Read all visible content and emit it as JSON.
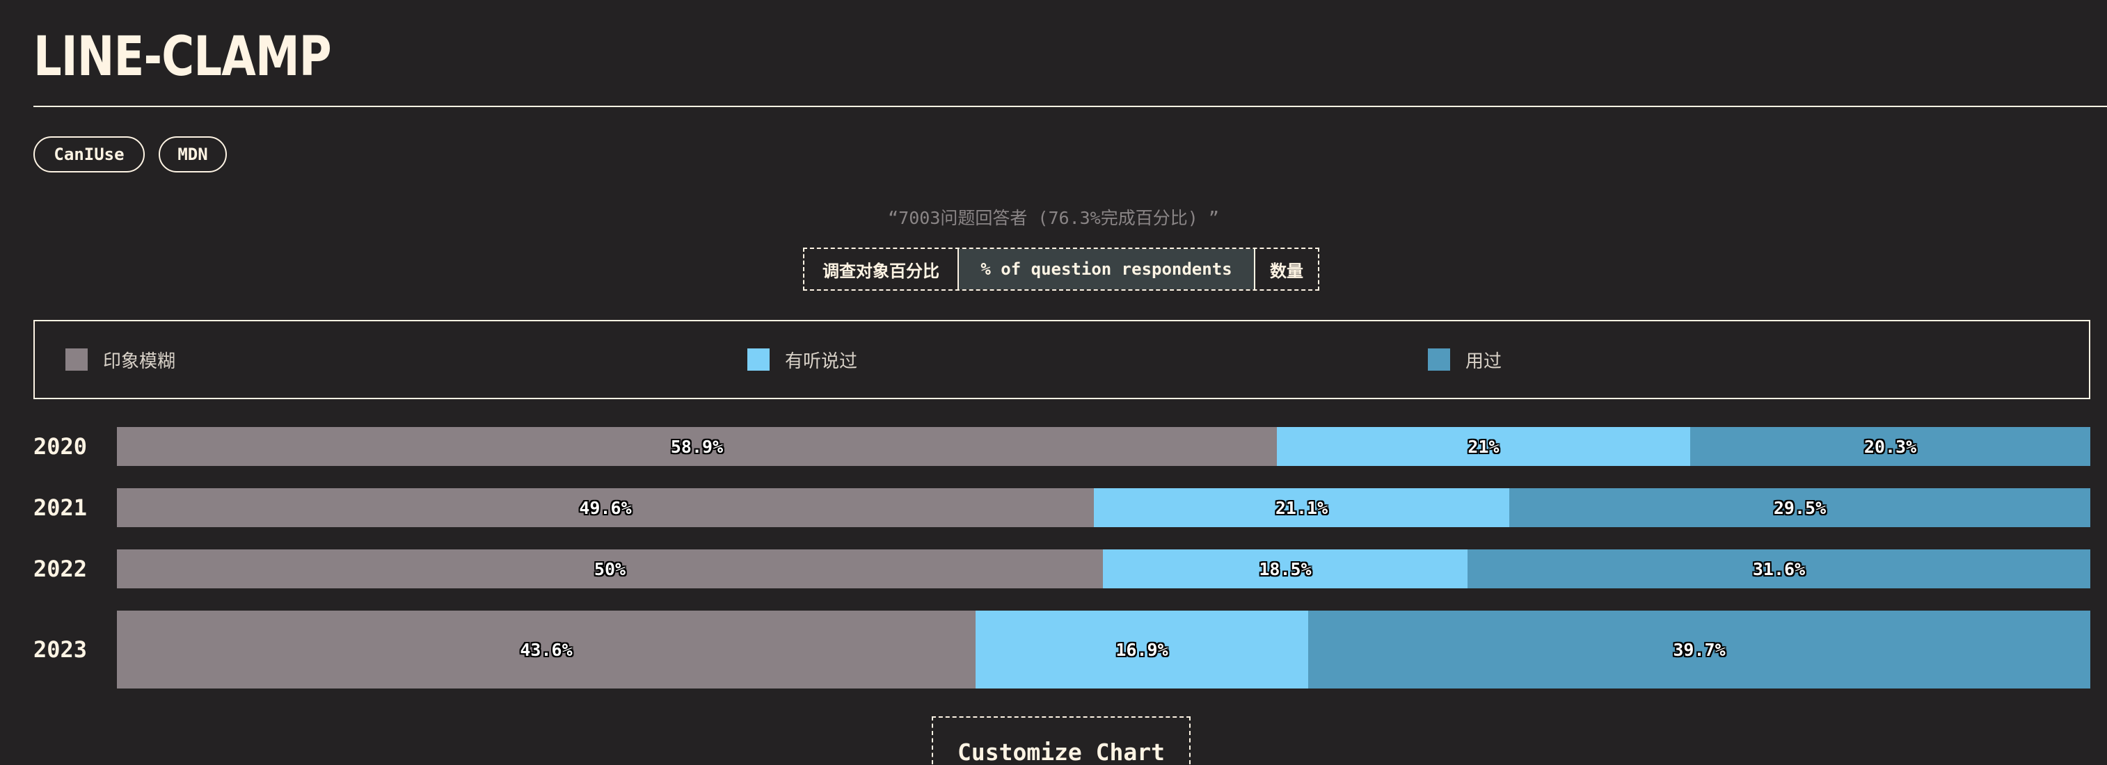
{
  "page": {
    "title": "LINE-CLAMP",
    "links": [
      {
        "label": "CanIUse"
      },
      {
        "label": "MDN"
      }
    ],
    "subtitle": "“7003问题回答者 (76.3%完成百分比) ”",
    "view_toggle": [
      {
        "label": "调查对象百分比",
        "selected": false
      },
      {
        "label": "% of question respondents",
        "selected": true
      },
      {
        "label": "数量",
        "selected": false
      }
    ],
    "customize_label": "Customize Chart"
  },
  "colors": {
    "background": "#242223",
    "text": "#fef4e4",
    "rule": "#fef4e4"
  },
  "chart_data": {
    "type": "bar",
    "orientation": "horizontal",
    "stacked": true,
    "normalized_to_percent": true,
    "categories": [
      "2020",
      "2021",
      "2022",
      "2023"
    ],
    "series": [
      {
        "name": "印象模糊",
        "color": "#8a8185",
        "values": [
          58.9,
          49.6,
          50,
          43.6
        ]
      },
      {
        "name": "有听说过",
        "color": "#7dd0f8",
        "values": [
          21,
          21.1,
          18.5,
          16.9
        ]
      },
      {
        "name": "用过",
        "color": "#529abd",
        "values": [
          20.3,
          29.5,
          31.6,
          39.7
        ]
      }
    ],
    "data_labels": [
      [
        "58.9%",
        "21%",
        "20.3%"
      ],
      [
        "49.6%",
        "21.1%",
        "29.5%"
      ],
      [
        "50%",
        "18.5%",
        "31.6%"
      ],
      [
        "43.6%",
        "16.9%",
        "39.7%"
      ]
    ],
    "xlim": [
      0,
      100
    ],
    "legend_position": "top",
    "grid": false
  }
}
